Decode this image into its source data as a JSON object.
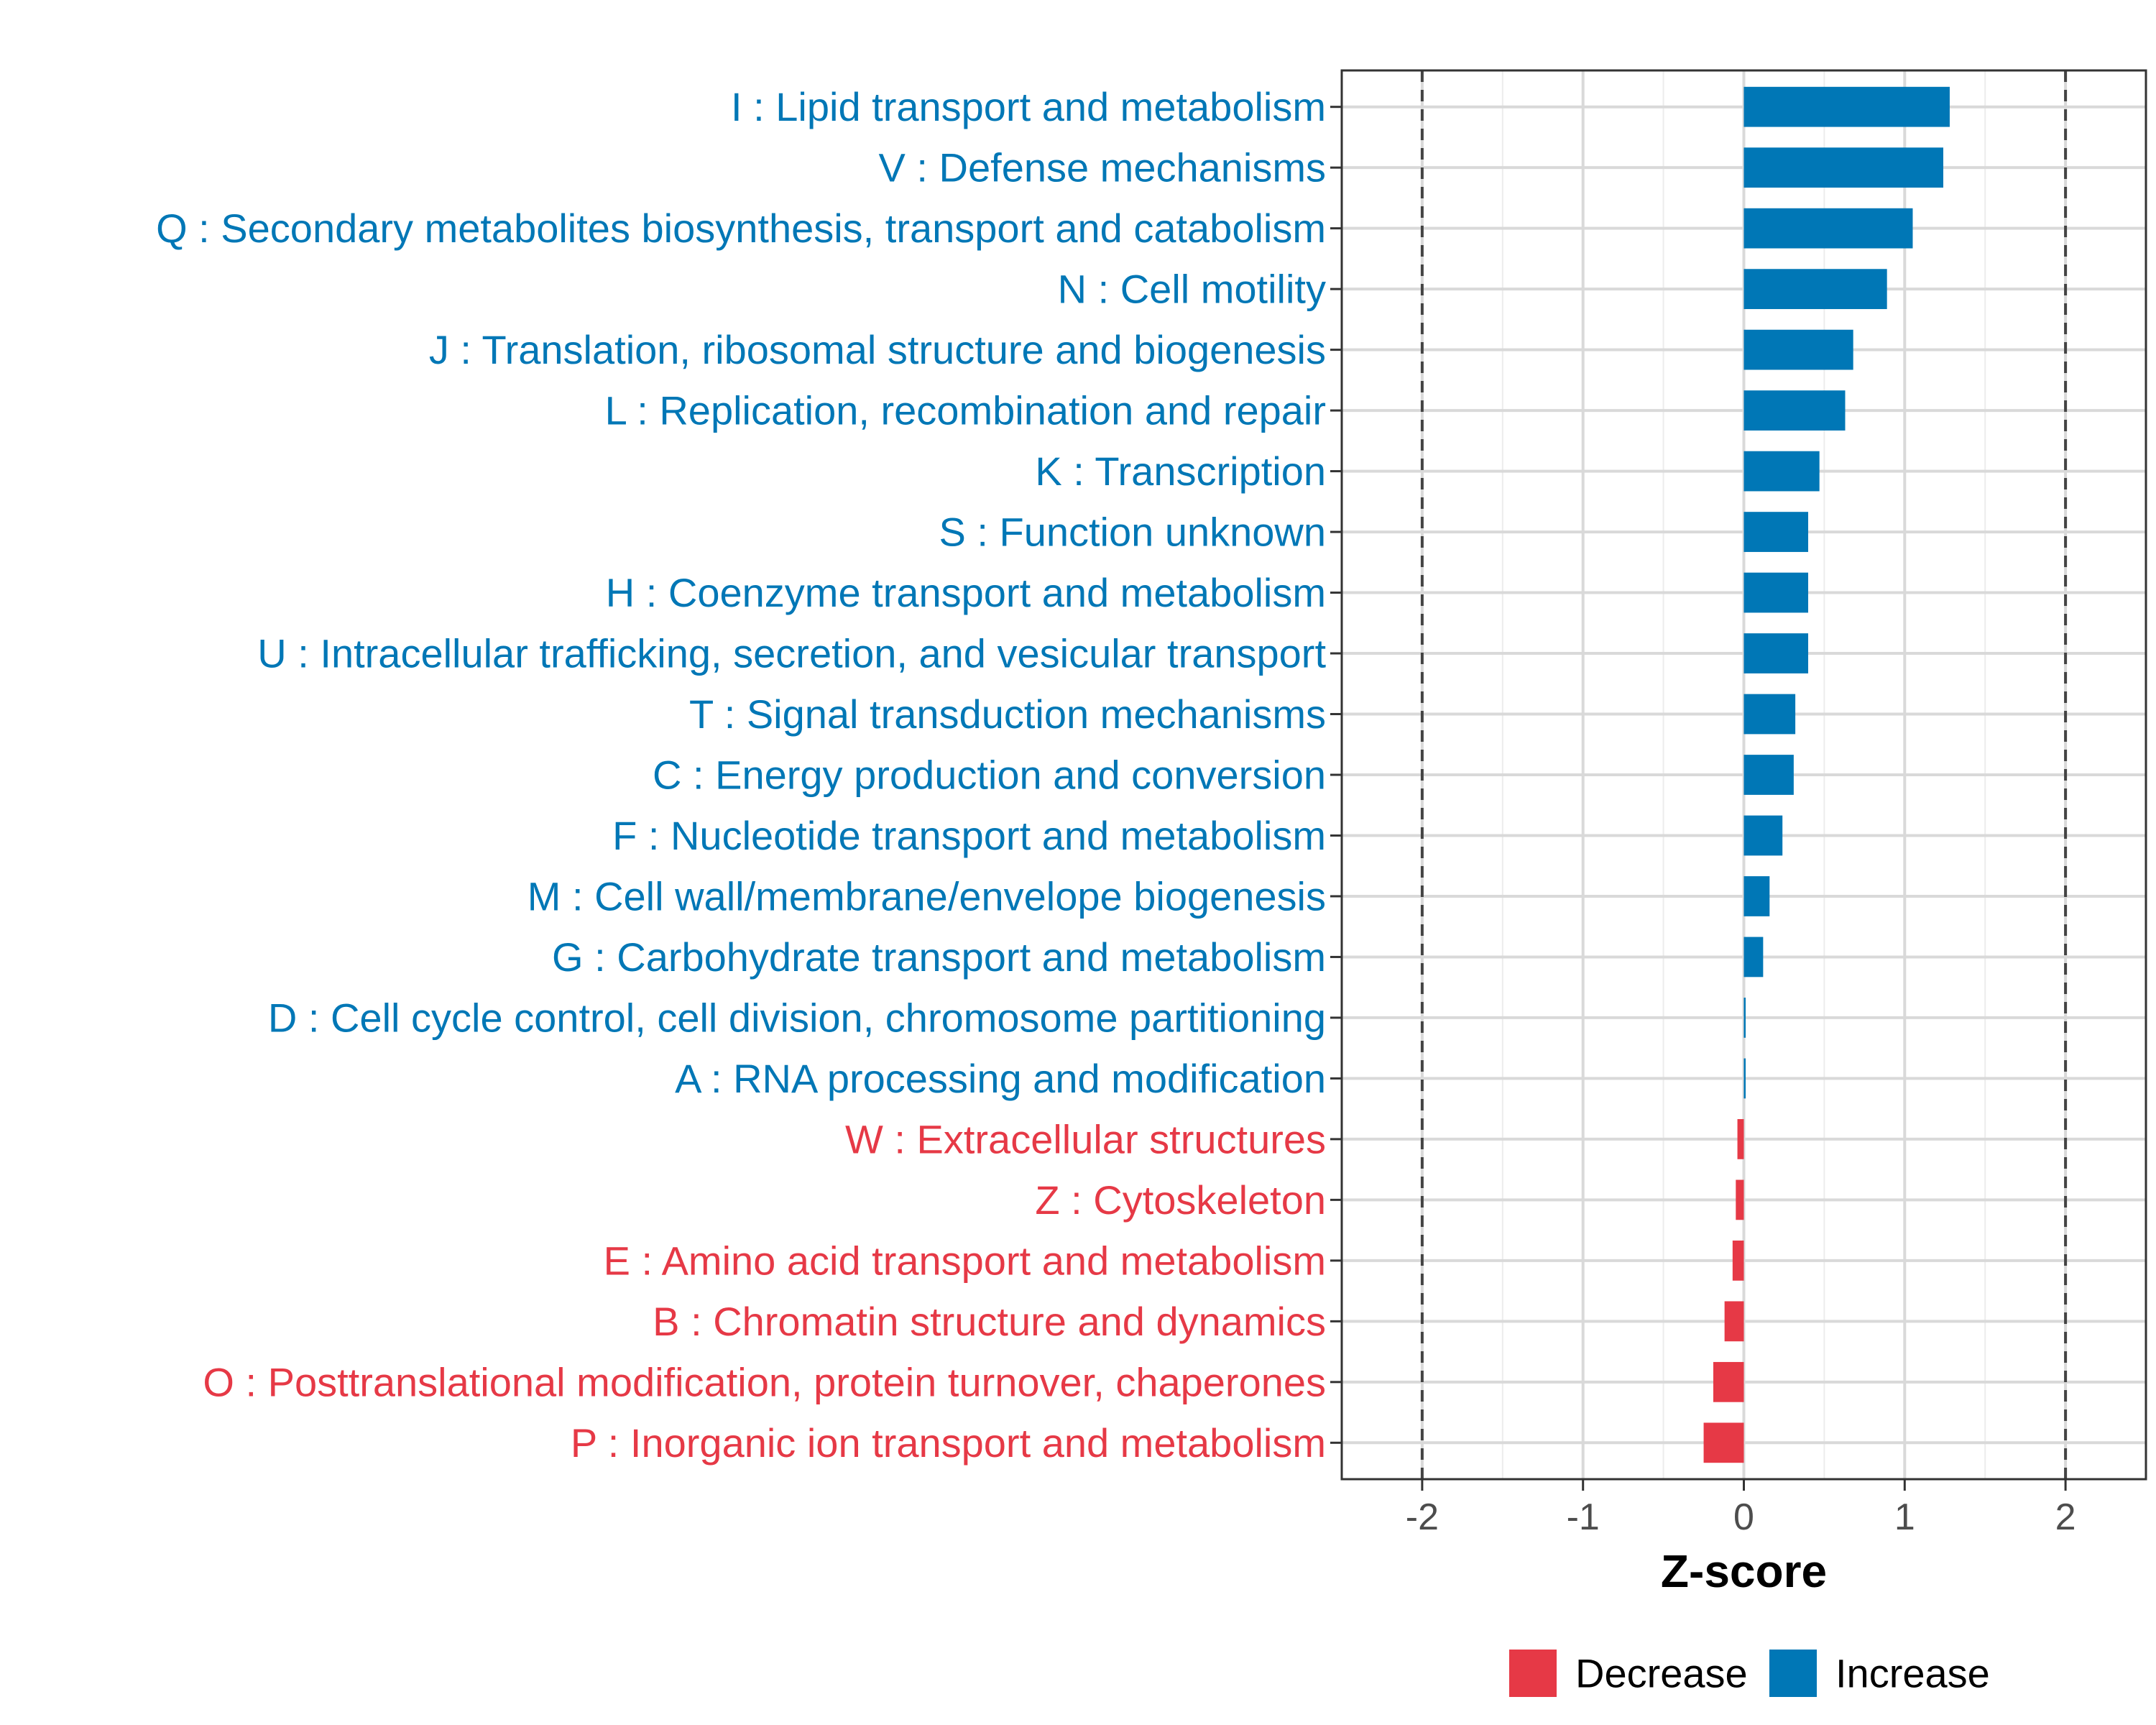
{
  "chart_data": {
    "type": "bar",
    "orientation": "horizontal",
    "xlabel": "Z-score",
    "ylabel": "",
    "xlim": [
      -2.5,
      2.5
    ],
    "xticks": [
      -2,
      -1,
      0,
      1,
      2
    ],
    "xtick_labels": [
      "-2",
      "-1",
      "0",
      "1",
      "2"
    ],
    "reference_lines": [
      -2,
      2
    ],
    "grid": true,
    "legend_position": "bottom",
    "colors": {
      "Decrease": "#e63946",
      "Increase": "#0077b6"
    },
    "legend": [
      {
        "name": "Decrease",
        "color": "#e63946"
      },
      {
        "name": "Increase",
        "color": "#0077b6"
      }
    ],
    "categories": [
      "I : Lipid transport and metabolism",
      "V : Defense mechanisms",
      "Q : Secondary metabolites biosynthesis, transport and catabolism",
      "N : Cell motility",
      "J : Translation, ribosomal structure and biogenesis",
      "L : Replication, recombination and repair",
      "K : Transcription",
      "S : Function unknown",
      "H : Coenzyme transport and metabolism",
      "U : Intracellular trafficking, secretion, and vesicular transport",
      "T : Signal transduction mechanisms",
      "C : Energy production and conversion",
      "F : Nucleotide transport and metabolism",
      "M : Cell wall/membrane/envelope biogenesis",
      "G : Carbohydrate transport and metabolism",
      "D : Cell cycle control, cell division, chromosome partitioning",
      "A : RNA processing and modification",
      "W : Extracellular structures",
      "Z : Cytoskeleton",
      "E : Amino acid transport and metabolism",
      "B : Chromatin structure and dynamics",
      "O : Posttranslational modification, protein turnover, chaperones",
      "P : Inorganic ion transport and metabolism"
    ],
    "values": [
      1.28,
      1.24,
      1.05,
      0.89,
      0.68,
      0.63,
      0.47,
      0.4,
      0.4,
      0.4,
      0.32,
      0.31,
      0.24,
      0.16,
      0.12,
      0.01,
      0.01,
      -0.04,
      -0.05,
      -0.07,
      -0.12,
      -0.19,
      -0.25
    ],
    "groups": [
      "Increase",
      "Increase",
      "Increase",
      "Increase",
      "Increase",
      "Increase",
      "Increase",
      "Increase",
      "Increase",
      "Increase",
      "Increase",
      "Increase",
      "Increase",
      "Increase",
      "Increase",
      "Increase",
      "Increase",
      "Decrease",
      "Decrease",
      "Decrease",
      "Decrease",
      "Decrease",
      "Decrease"
    ]
  }
}
